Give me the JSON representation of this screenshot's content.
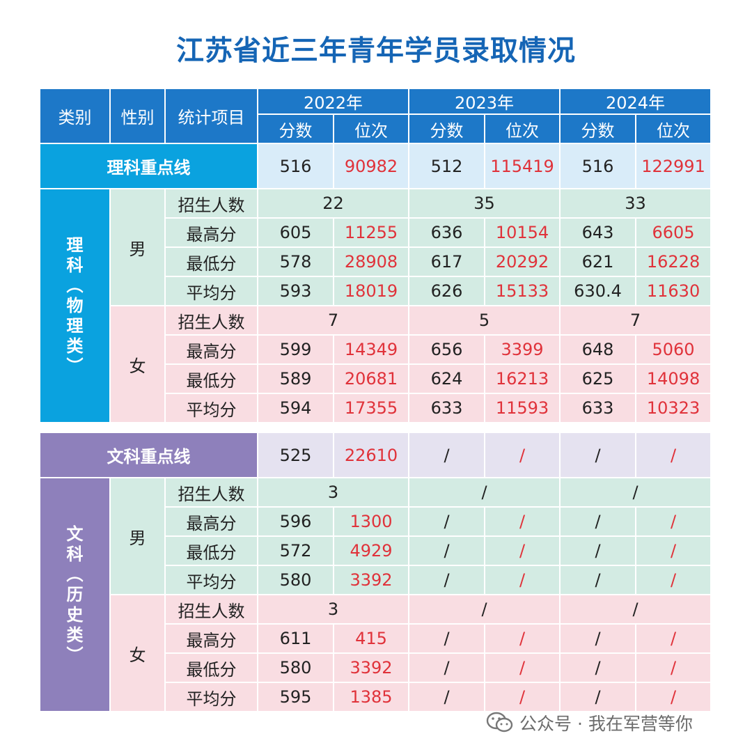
{
  "title": "江苏省近三年青年学员录取情况",
  "header": {
    "category": "类别",
    "gender": "性别",
    "item": "统计项目",
    "years": [
      "2022年",
      "2023年",
      "2024年"
    ],
    "score": "分数",
    "rank": "位次"
  },
  "science": {
    "line_label": "理科重点线",
    "line_values": [
      {
        "score": "516",
        "rank": "90982"
      },
      {
        "score": "512",
        "rank": "115419"
      },
      {
        "score": "516",
        "rank": "122991"
      }
    ],
    "category_label": "理\n科\n︵\n物\n理\n类\n︶",
    "male": {
      "label": "男",
      "enroll_label": "招生人数",
      "enroll": [
        "22",
        "35",
        "33"
      ],
      "rows": [
        {
          "label": "最高分",
          "values": [
            "605",
            "11255",
            "636",
            "10154",
            "643",
            "6605"
          ]
        },
        {
          "label": "最低分",
          "values": [
            "578",
            "28908",
            "617",
            "20292",
            "621",
            "16228"
          ]
        },
        {
          "label": "平均分",
          "values": [
            "593",
            "18019",
            "626",
            "15133",
            "630.4",
            "11630"
          ]
        }
      ]
    },
    "female": {
      "label": "女",
      "enroll_label": "招生人数",
      "enroll": [
        "7",
        "5",
        "7"
      ],
      "rows": [
        {
          "label": "最高分",
          "values": [
            "599",
            "14349",
            "656",
            "3399",
            "648",
            "5060"
          ]
        },
        {
          "label": "最低分",
          "values": [
            "589",
            "20681",
            "624",
            "16213",
            "625",
            "14098"
          ]
        },
        {
          "label": "平均分",
          "values": [
            "594",
            "17355",
            "633",
            "11593",
            "633",
            "10323"
          ]
        }
      ]
    }
  },
  "arts": {
    "line_label": "文科重点线",
    "line_values": [
      {
        "score": "525",
        "rank": "22610"
      },
      {
        "score": "/",
        "rank": "/"
      },
      {
        "score": "/",
        "rank": "/"
      }
    ],
    "category_label": "文\n科\n︵\n历\n史\n类\n︶",
    "male": {
      "label": "男",
      "enroll_label": "招生人数",
      "enroll": [
        "3",
        "/",
        "/"
      ],
      "rows": [
        {
          "label": "最高分",
          "values": [
            "596",
            "1300",
            "/",
            "/",
            "/",
            "/"
          ]
        },
        {
          "label": "最低分",
          "values": [
            "572",
            "4929",
            "/",
            "/",
            "/",
            "/"
          ]
        },
        {
          "label": "平均分",
          "values": [
            "580",
            "3392",
            "/",
            "/",
            "/",
            "/"
          ]
        }
      ]
    },
    "female": {
      "label": "女",
      "enroll_label": "招生人数",
      "enroll": [
        "3",
        "/",
        "/"
      ],
      "rows": [
        {
          "label": "最高分",
          "values": [
            "611",
            "415",
            "/",
            "/",
            "/",
            "/"
          ]
        },
        {
          "label": "最低分",
          "values": [
            "580",
            "3392",
            "/",
            "/",
            "/",
            "/"
          ]
        },
        {
          "label": "平均分",
          "values": [
            "595",
            "1385",
            "/",
            "/",
            "/",
            "/"
          ]
        }
      ]
    }
  },
  "watermark": {
    "text": "公众号 · 我在军营等你",
    "icon": "wechat-icon"
  }
}
